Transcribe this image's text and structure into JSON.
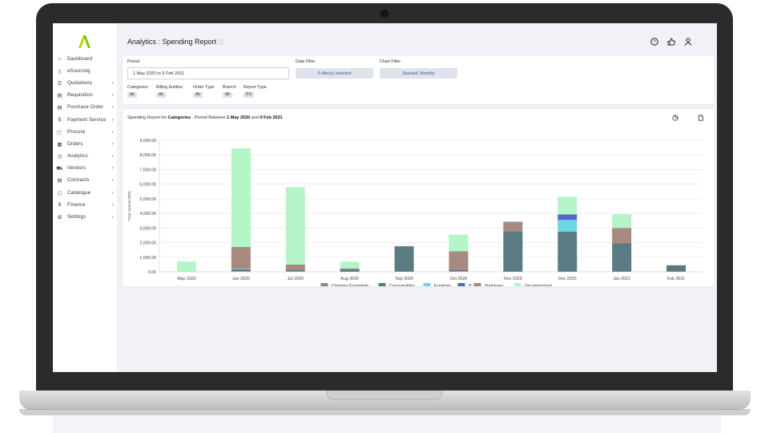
{
  "app": {
    "page_title": "Analytics : Spending Report",
    "header_icons": [
      "help-icon",
      "thumbs-up-icon",
      "user-icon"
    ]
  },
  "sidebar": {
    "items": [
      {
        "label": "Dashboard",
        "icon": "home-icon",
        "has_chevron": false
      },
      {
        "label": "eSourcing",
        "icon": "clipboard-icon",
        "has_chevron": false
      },
      {
        "label": "Quotations",
        "icon": "list-icon",
        "has_chevron": true
      },
      {
        "label": "Requisition",
        "icon": "document-icon",
        "has_chevron": true
      },
      {
        "label": "Purchase Order",
        "icon": "document-icon",
        "has_chevron": true
      },
      {
        "label": "Payment Service",
        "icon": "dollar-icon",
        "has_chevron": true
      },
      {
        "label": "Procure",
        "icon": "cart-icon",
        "has_chevron": true
      },
      {
        "label": "Orders",
        "icon": "calendar-icon",
        "has_chevron": true
      },
      {
        "label": "Analytics",
        "icon": "clock-icon",
        "has_chevron": true
      },
      {
        "label": "Vendors",
        "icon": "truck-icon",
        "has_chevron": true
      },
      {
        "label": "Contracts",
        "icon": "document-icon",
        "has_chevron": true
      },
      {
        "label": "Catalogue",
        "icon": "box-icon",
        "has_chevron": true
      },
      {
        "label": "Finance",
        "icon": "dollar-icon",
        "has_chevron": true
      },
      {
        "label": "Settings",
        "icon": "gear-icon",
        "has_chevron": true
      }
    ]
  },
  "filters": {
    "period_label": "Period",
    "period_value": "1 May 2020 to 9 Feb 2021",
    "data_filter_label": "Data Filter",
    "data_filter_value": "6 filter(s) selected",
    "chart_filter_label": "Chart Filter",
    "chart_filter_value": "Stacked, Monthly",
    "tags": [
      {
        "label": "Categories",
        "value": "All"
      },
      {
        "label": "Billing Entities",
        "value": "All"
      },
      {
        "label": "Order Type",
        "value": "All"
      },
      {
        "label": "Branch",
        "value": "All"
      },
      {
        "label": "Report Type",
        "value": "PO"
      }
    ]
  },
  "chart_card": {
    "caption_prefix": "Spending Report for ",
    "caption_category": "Categories",
    "caption_mid": " . Period Between ",
    "caption_start": "1 May 2020",
    "caption_and": " and ",
    "caption_end": "9 Feb 2021",
    "icons": [
      "pie-chart-icon",
      "export-document-icon"
    ]
  },
  "chart_data": {
    "type": "bar",
    "stacked": true,
    "ylabel": "Total Spend (RM)",
    "ylim": [
      0,
      9000
    ],
    "yticks": [
      "0.00",
      "1,000.00",
      "2,000.00",
      "3,000.00",
      "4,000.00",
      "5,000.00",
      "6,000.00",
      "7,000.00",
      "8,000.00",
      "9,000.00"
    ],
    "grid": true,
    "legend_position": "bottom",
    "categories": [
      "May 2020",
      "Jun 2020",
      "Jul 2020",
      "Aug 2020",
      "Sep 2020",
      "Oct 2020",
      "Nov 2020",
      "Dec 2020",
      "Jan 2021",
      "Feb 2021"
    ],
    "series": [
      {
        "name": "Cleaning Essentials",
        "color": "#8a8a8a",
        "values": [
          0,
          50,
          50,
          0,
          0,
          50,
          0,
          0,
          0,
          0
        ]
      },
      {
        "name": "Consumables",
        "color": "#5b7b82",
        "values": [
          0,
          120,
          100,
          180,
          1750,
          100,
          2780,
          2750,
          1950,
          450
        ]
      },
      {
        "name": "Furniture",
        "color": "#6fd6e6",
        "values": [
          0,
          30,
          0,
          0,
          0,
          0,
          0,
          800,
          0,
          0
        ]
      },
      {
        "name": "IT",
        "color": "#5566cc",
        "values": [
          0,
          0,
          0,
          0,
          0,
          0,
          0,
          380,
          0,
          0
        ]
      },
      {
        "name": "Stationery",
        "color": "#a68a80",
        "values": [
          0,
          1500,
          350,
          60,
          0,
          1250,
          650,
          0,
          1050,
          0
        ]
      },
      {
        "name": "Uncategorized",
        "color": "#b4f5c8",
        "values": [
          700,
          6750,
          5300,
          450,
          0,
          1150,
          0,
          1200,
          950,
          0
        ]
      }
    ]
  }
}
